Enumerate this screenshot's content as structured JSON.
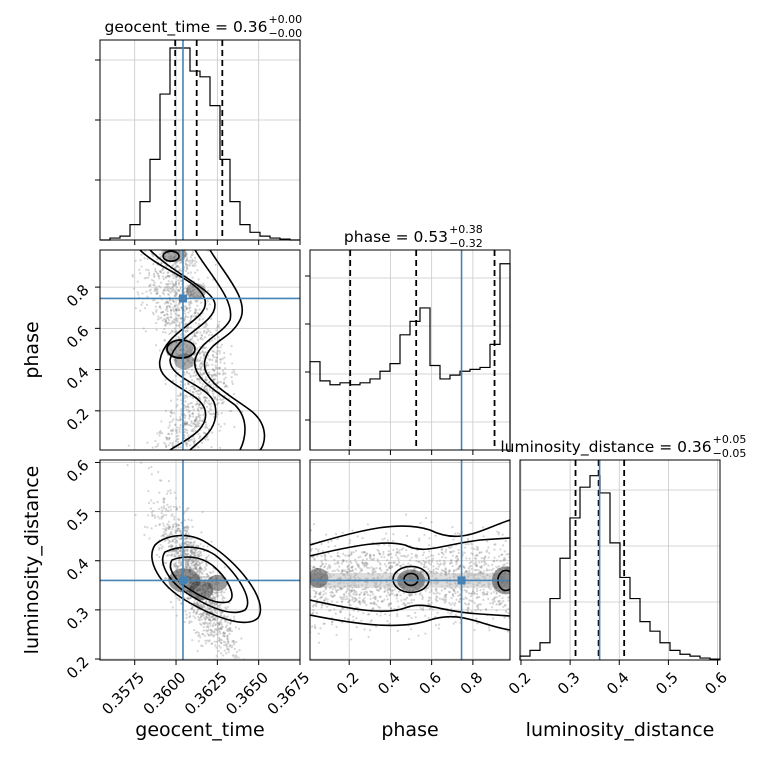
{
  "chart_data": {
    "type": "corner",
    "parameters": [
      "geocent_time",
      "phase",
      "luminosity_distance"
    ],
    "titles": [
      {
        "param": "geocent_time",
        "label": "geocent_time",
        "median": "0.36",
        "plus": "+0.00",
        "minus": "−0.00"
      },
      {
        "param": "phase",
        "label": "phase",
        "median": "0.53",
        "plus": "+0.38",
        "minus": "−0.32"
      },
      {
        "param": "luminosity_distance",
        "label": "luminosity_distance",
        "median": "0.36",
        "plus": "+0.05",
        "minus": "−0.05"
      }
    ],
    "axis_labels": {
      "x": [
        "geocent_time",
        "phase",
        "luminosity_distance"
      ],
      "y": [
        "phase",
        "luminosity_distance"
      ]
    },
    "ranges": {
      "geocent_time": [
        0.3554,
        0.3675
      ],
      "phase": [
        0.01,
        0.98
      ],
      "luminosity_distance": [
        0.198,
        0.605
      ]
    },
    "ticks": {
      "geocent_time": [
        "0.3575",
        "0.3600",
        "0.3625",
        "0.3650",
        "0.3675"
      ],
      "phase": [
        "0.2",
        "0.4",
        "0.6",
        "0.8"
      ],
      "luminosity_distance_x": [
        "0.2",
        "0.3",
        "0.4",
        "0.5",
        "0.6"
      ],
      "luminosity_distance_y": [
        "0.2",
        "0.3",
        "0.4",
        "0.5",
        "0.6"
      ]
    },
    "injection": {
      "geocent_time": 0.36042,
      "phase": 0.745,
      "luminosity_distance": 0.36
    },
    "quantiles": {
      "geocent_time": [
        0.35995,
        0.36125,
        0.3628
      ],
      "phase": [
        0.205,
        0.525,
        0.905
      ],
      "luminosity_distance": [
        0.311,
        0.358,
        0.41
      ]
    },
    "histograms": {
      "geocent_time": [
        0,
        0.01,
        0.02,
        0.08,
        0.2,
        0.42,
        0.76,
        1.0,
        1.0,
        0.88,
        0.85,
        0.7,
        0.42,
        0.2,
        0.08,
        0.04,
        0.02,
        0.01,
        0.005,
        0
      ],
      "phase": [
        0.46,
        0.36,
        0.34,
        0.35,
        0.34,
        0.35,
        0.37,
        0.41,
        0.45,
        0.6,
        0.67,
        0.74,
        0.44,
        0.37,
        0.39,
        0.41,
        0.42,
        0.43,
        0.55,
        0.97
      ],
      "luminosity_distance": [
        0.02,
        0.05,
        0.09,
        0.32,
        0.53,
        0.74,
        0.9,
        0.96,
        0.87,
        0.61,
        0.43,
        0.32,
        0.2,
        0.15,
        0.09,
        0.05,
        0.03,
        0.02,
        0.01,
        0.005
      ]
    },
    "colors": {
      "injection": "#4682b4",
      "contour": "#000000",
      "density": "#444444"
    },
    "grid": true
  }
}
